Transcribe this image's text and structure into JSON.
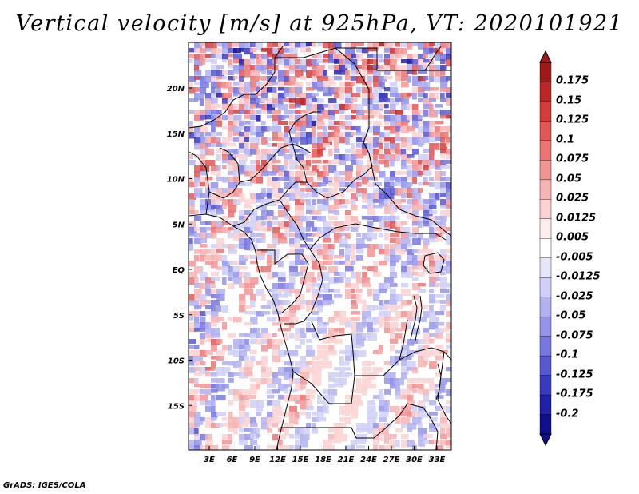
{
  "title": "Vertical velocity [m/s] at 925hPa, VT: 2020101921",
  "footer": "GrADS: IGES/COLA",
  "map": {
    "lat_labels": [
      {
        "text": "20N",
        "lat": 20
      },
      {
        "text": "15N",
        "lat": 15
      },
      {
        "text": "10N",
        "lat": 10
      },
      {
        "text": "5N",
        "lat": 5
      },
      {
        "text": "EQ",
        "lat": 0
      },
      {
        "text": "5S",
        "lat": -5
      },
      {
        "text": "10S",
        "lat": -10
      },
      {
        "text": "15S",
        "lat": -15
      }
    ],
    "lon_labels": [
      {
        "text": "3E",
        "lon": 3
      },
      {
        "text": "6E",
        "lon": 6
      },
      {
        "text": "9E",
        "lon": 9
      },
      {
        "text": "12E",
        "lon": 12
      },
      {
        "text": "15E",
        "lon": 15
      },
      {
        "text": "18E",
        "lon": 18
      },
      {
        "text": "21E",
        "lon": 21
      },
      {
        "text": "24E",
        "lon": 24
      },
      {
        "text": "27E",
        "lon": 27
      },
      {
        "text": "30E",
        "lon": 30
      },
      {
        "text": "33E",
        "lon": 33
      }
    ]
  },
  "colorbar": {
    "labels": [
      "0.175",
      "0.15",
      "0.125",
      "0.1",
      "0.075",
      "0.05",
      "0.025",
      "0.0125",
      "0.005",
      "-0.005",
      "-0.0125",
      "-0.025",
      "-0.05",
      "-0.075",
      "-0.1",
      "-0.125",
      "-0.175",
      "-0.2"
    ],
    "colors": [
      "#a01818",
      "#be2626",
      "#d43c3c",
      "#e25656",
      "#ec7474",
      "#f29494",
      "#f7b4b4",
      "#fbd2d2",
      "#fdeeee",
      "#ffffff",
      "#e6e6fb",
      "#cfcff7",
      "#b2b2f1",
      "#9494ea",
      "#7777e0",
      "#5858d2",
      "#3a3ac0",
      "#2020a8",
      "#10108c"
    ]
  }
}
